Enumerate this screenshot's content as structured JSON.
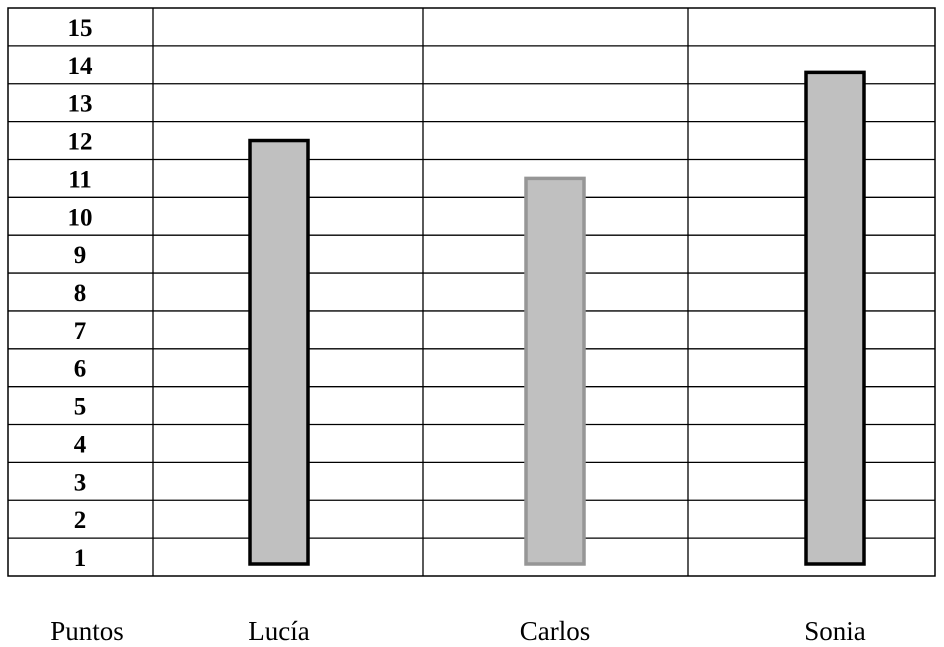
{
  "chart_data": {
    "type": "bar",
    "row_header": "Puntos",
    "categories": [
      "Lucía",
      "Carlos",
      "Sonia"
    ],
    "values": [
      11.5,
      10.5,
      13.3
    ],
    "yticks": [
      1,
      2,
      3,
      4,
      5,
      6,
      7,
      8,
      9,
      10,
      11,
      12,
      13,
      14,
      15
    ],
    "ylim": [
      0,
      15
    ],
    "grid": true,
    "bar_styles": [
      {
        "fill": "#c0c0c0",
        "stroke": "#000000"
      },
      {
        "fill": "#c0c0c0",
        "stroke": "#969696"
      },
      {
        "fill": "#c0c0c0",
        "stroke": "#000000"
      }
    ]
  }
}
